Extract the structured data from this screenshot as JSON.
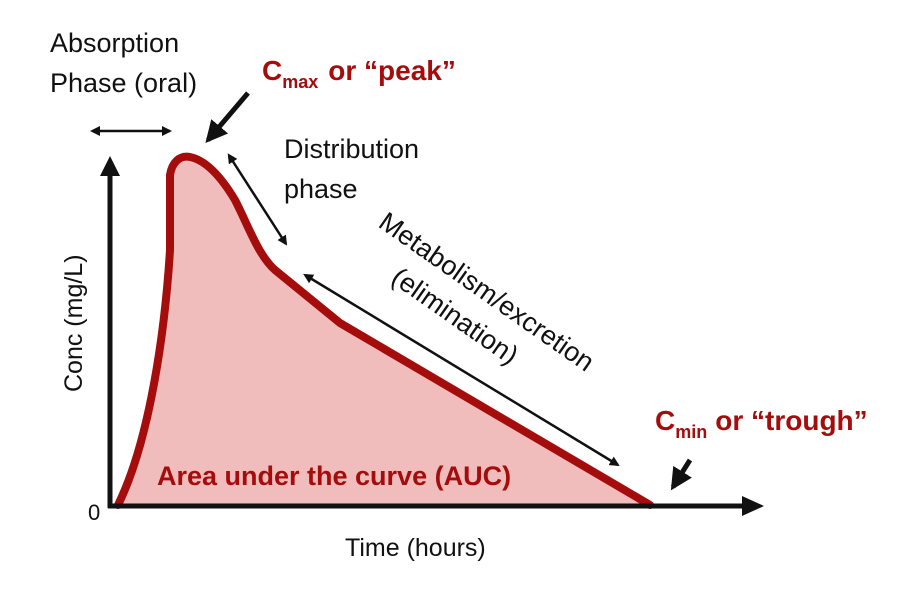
{
  "axes": {
    "y_label": "Conc (mg/L)",
    "x_label": "Time (hours)",
    "origin_tick": "0"
  },
  "annotations": {
    "absorption": [
      "Absorption",
      "Phase (oral)"
    ],
    "cmax": {
      "letter": "C",
      "sub": "max",
      "rest": "or “peak”"
    },
    "distribution": [
      "Distribution",
      "phase"
    ],
    "elimination": [
      "Metabolism/excretion",
      "(elimination)"
    ],
    "cmin": {
      "letter": "C",
      "sub": "min",
      "rest": "or “trough”"
    },
    "auc": "Area under the curve (AUC)"
  },
  "colors": {
    "curve": "#a50d0d",
    "fill": "#f0bcbc",
    "text": "#111111"
  }
}
